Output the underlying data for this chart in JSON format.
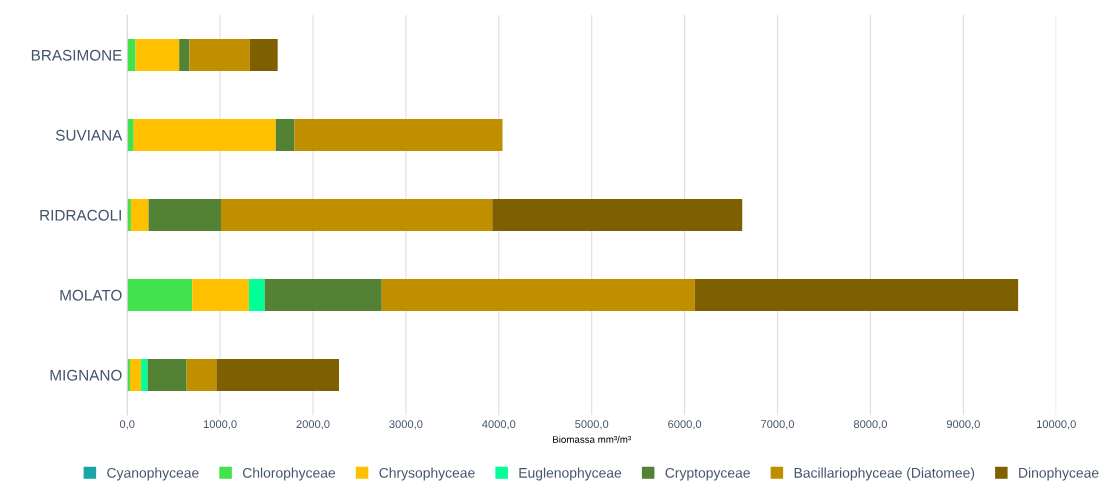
{
  "chart_data": {
    "type": "bar",
    "orientation": "horizontal",
    "stacked": true,
    "xlabel": "Biomassa mm³/m³",
    "categories": [
      "BRASIMONE",
      "SUVIANA",
      "RIDRACOLI",
      "MOLATO",
      "MIGNANO"
    ],
    "series": [
      {
        "name": "Cyanophyceae",
        "color": "#1aa6a6",
        "values": [
          0,
          0,
          0,
          0,
          0
        ]
      },
      {
        "name": "Chlorophyceae",
        "color": "#41e24e",
        "values": [
          90,
          70,
          40,
          700,
          30
        ]
      },
      {
        "name": "Chrysophyceae",
        "color": "#ffc000",
        "values": [
          470,
          1530,
          190,
          610,
          120
        ]
      },
      {
        "name": "Euglenophyceae",
        "color": "#00ff99",
        "values": [
          0,
          0,
          0,
          170,
          70
        ]
      },
      {
        "name": "Cryptopyceae",
        "color": "#548235",
        "values": [
          110,
          200,
          780,
          1260,
          420
        ]
      },
      {
        "name": "Bacillariophyceae (Diatomee)",
        "color": "#bf8f00",
        "values": [
          650,
          2240,
          2920,
          3370,
          320
        ]
      },
      {
        "name": "Dinophyceae",
        "color": "#7f6000",
        "values": [
          300,
          0,
          2690,
          3480,
          1320
        ]
      }
    ],
    "xlim": [
      0,
      10000
    ],
    "xticks": [
      {
        "value": 0,
        "label": "0,0"
      },
      {
        "value": 1000,
        "label": "1000,0"
      },
      {
        "value": 2000,
        "label": "2000,0"
      },
      {
        "value": 3000,
        "label": "3000,0"
      },
      {
        "value": 4000,
        "label": "4000,0"
      },
      {
        "value": 5000,
        "label": "5000,0"
      },
      {
        "value": 6000,
        "label": "6000,0"
      },
      {
        "value": 7000,
        "label": "7000,0"
      },
      {
        "value": 8000,
        "label": "8000,0"
      },
      {
        "value": 9000,
        "label": "9000,0"
      },
      {
        "value": 10000,
        "label": "10000,0"
      }
    ],
    "grid": "x",
    "legend": "bottom"
  }
}
